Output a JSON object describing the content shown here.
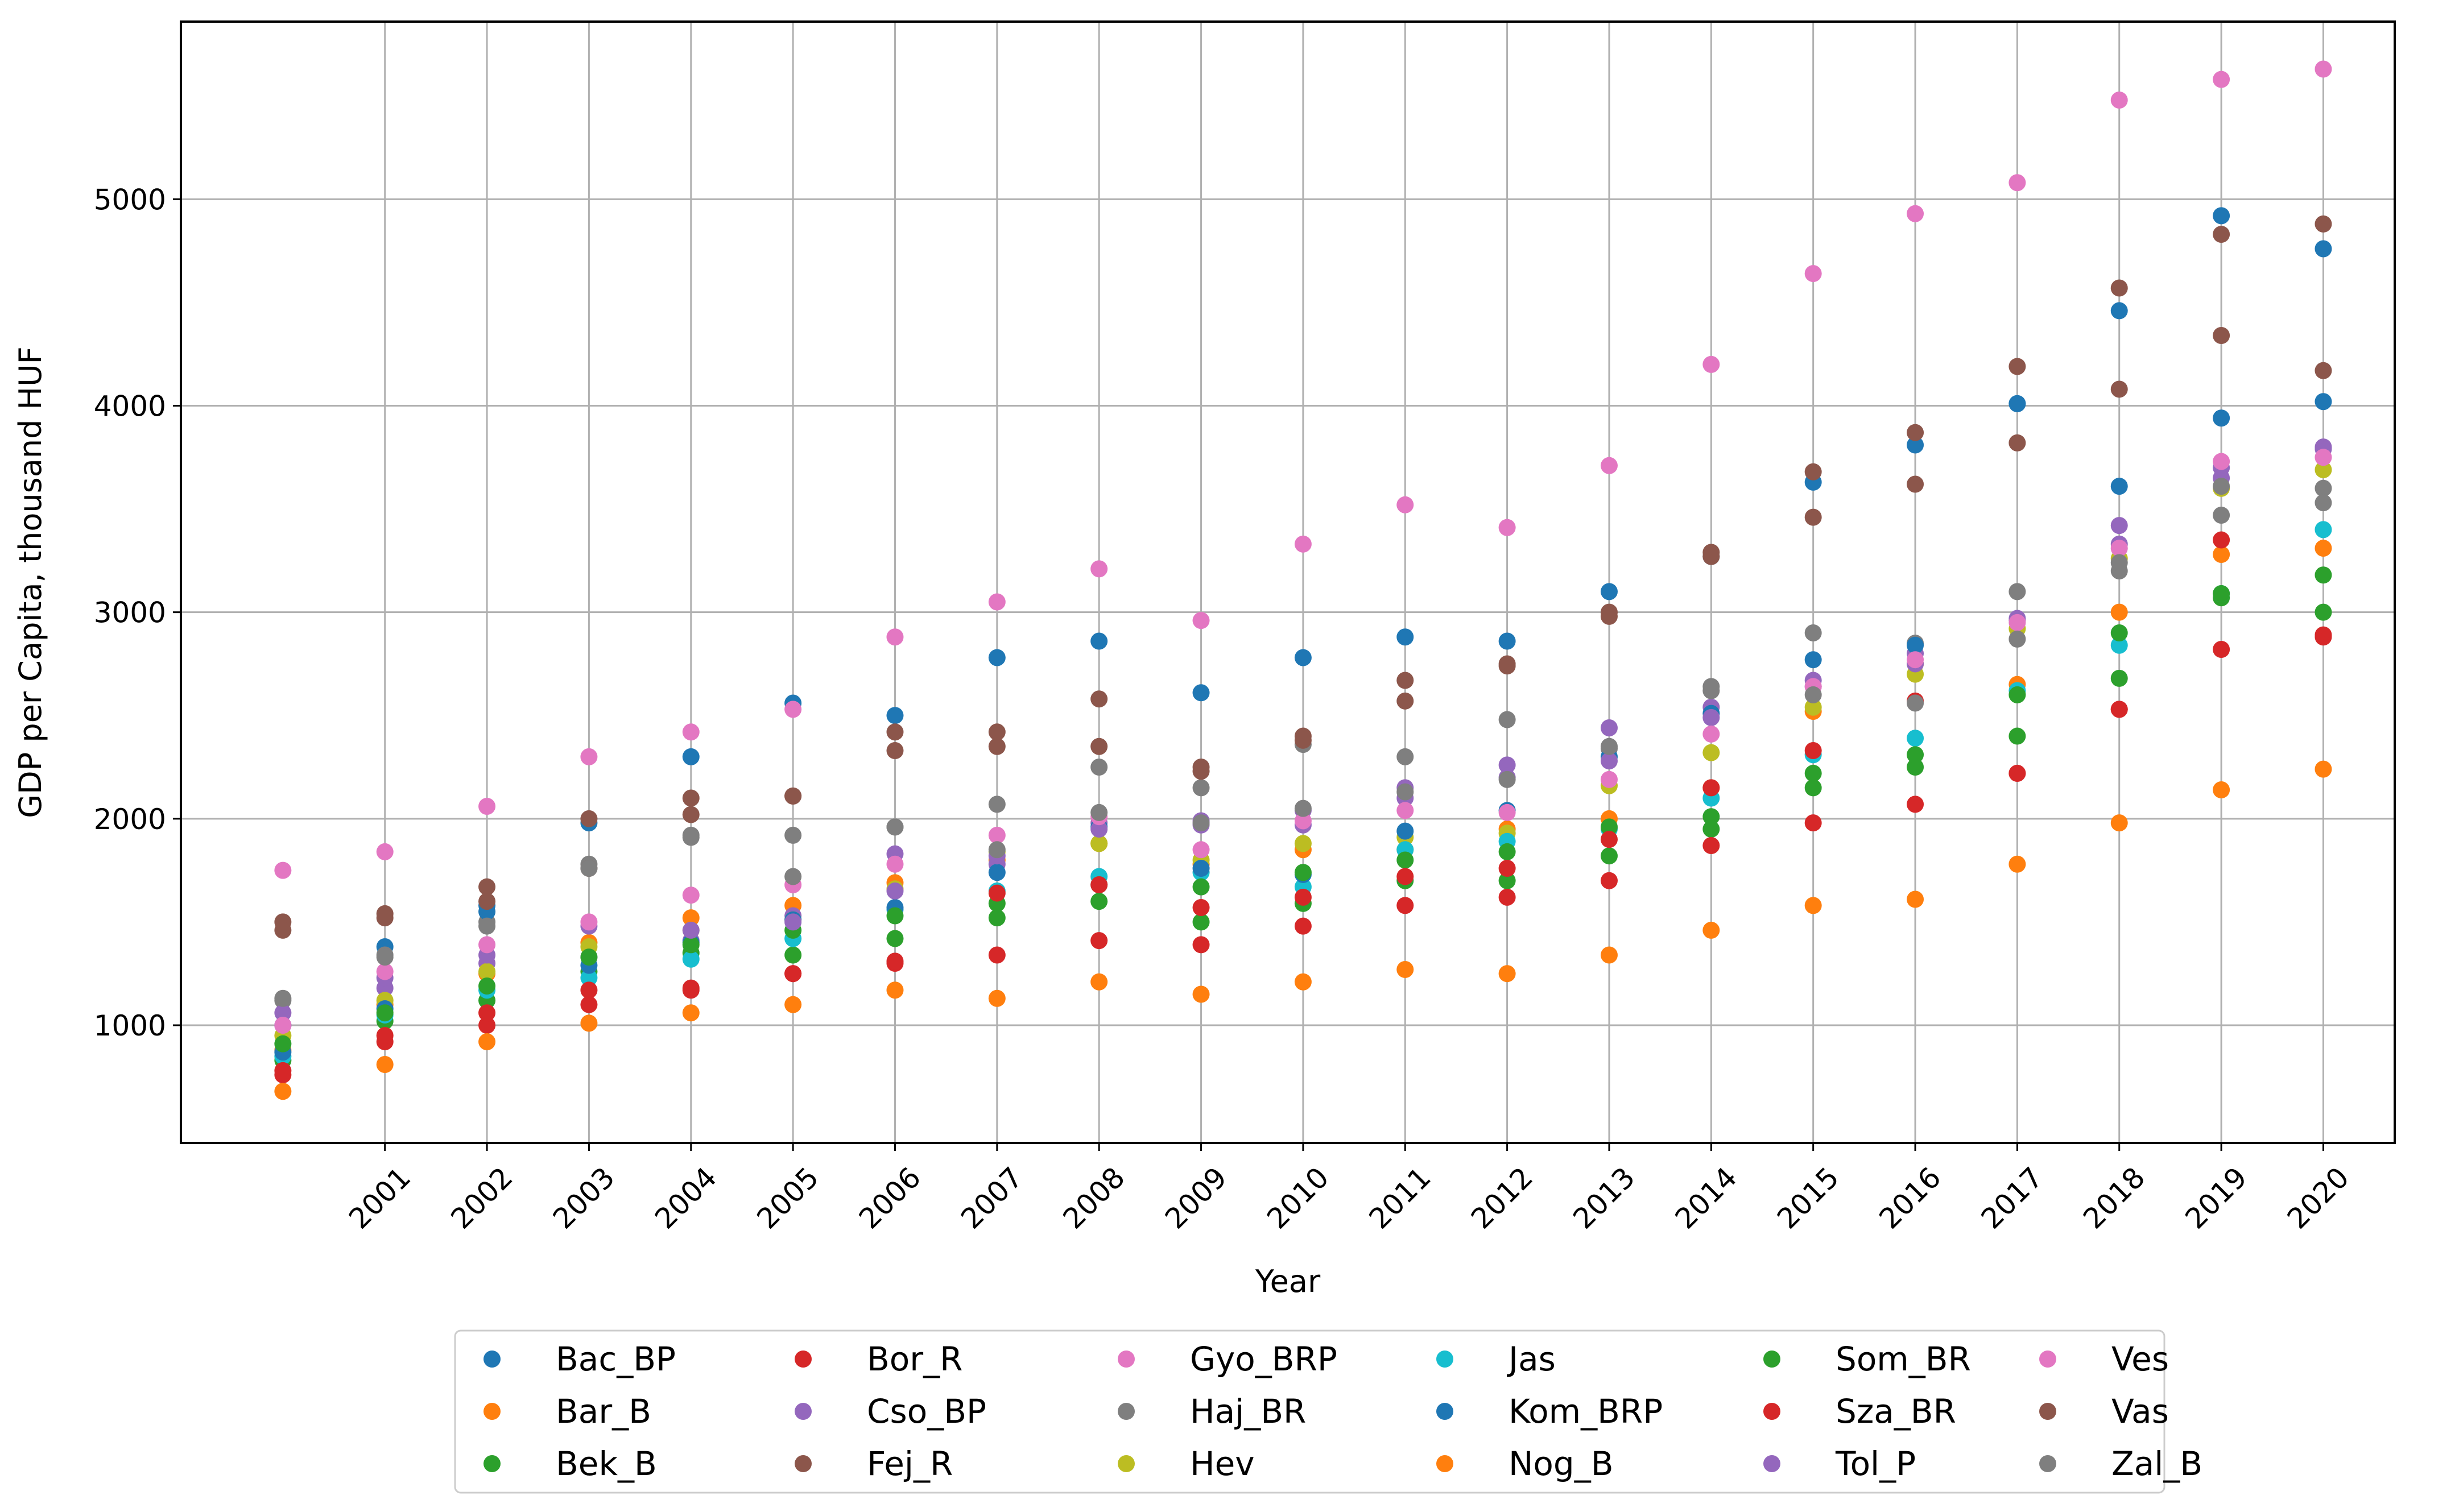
{
  "chart_data": {
    "type": "scatter",
    "title": "",
    "xlabel": "Year",
    "ylabel": "GDP per Capita, thousand HUF",
    "x": [
      2000,
      2001,
      2002,
      2003,
      2004,
      2005,
      2006,
      2007,
      2008,
      2009,
      2010,
      2011,
      2012,
      2013,
      2014,
      2015,
      2016,
      2017,
      2018,
      2019,
      2020
    ],
    "xticks": [
      "2001",
      "2002",
      "2003",
      "2004",
      "2005",
      "2006",
      "2007",
      "2008",
      "2009",
      "2010",
      "2011",
      "2012",
      "2013",
      "2014",
      "2015",
      "2016",
      "2017",
      "2018",
      "2019",
      "2020"
    ],
    "yticks": [
      1000,
      2000,
      3000,
      4000,
      5000
    ],
    "xlim": [
      1999.0,
      2020.7
    ],
    "ylim": [
      430,
      5860
    ],
    "grid": true,
    "legend_position": "bottom-center",
    "series": [
      {
        "name": "Bac_BP",
        "color": "#1f77b4",
        "values": [
          1000,
          1380,
          1580,
          1980,
          2300,
          2560,
          2500,
          2780,
          2860,
          2610,
          2780,
          2880,
          2860,
          3100,
          3270,
          3630,
          3810,
          4010,
          4460,
          4920,
          4760
        ]
      },
      {
        "name": "Bar_B",
        "color": "#ff7f0e",
        "values": [
          880,
          1100,
          1250,
          1400,
          1520,
          1580,
          1690,
          1800,
          1880,
          1780,
          1850,
          1850,
          1950,
          2000,
          2150,
          2520,
          2750,
          2650,
          3000,
          3280,
          3310
        ]
      },
      {
        "name": "Bek_B",
        "color": "#2ca02c",
        "values": [
          830,
          1020,
          1120,
          1260,
          1350,
          1340,
          1420,
          1520,
          1600,
          1500,
          1590,
          1700,
          1700,
          1820,
          1950,
          2150,
          2250,
          2400,
          2680,
          3070,
          3000
        ]
      },
      {
        "name": "Bor_R",
        "color": "#d62728",
        "values": [
          760,
          920,
          1000,
          1100,
          1180,
          1250,
          1300,
          1340,
          1410,
          1390,
          1480,
          1580,
          1620,
          1700,
          1870,
          1980,
          2070,
          2220,
          2530,
          2820,
          2880
        ]
      },
      {
        "name": "Cso_BP",
        "color": "#9467bd",
        "values": [
          1000,
          1180,
          1300,
          1330,
          1410,
          1530,
          1830,
          1780,
          1980,
          1990,
          2040,
          2150,
          2260,
          2440,
          2540,
          2670,
          2800,
          2960,
          3420,
          3700,
          3800
        ]
      },
      {
        "name": "Fej_R",
        "color": "#8c564b",
        "values": [
          1500,
          1540,
          1670,
          2000,
          2100,
          2110,
          2420,
          2420,
          2580,
          2250,
          2400,
          2670,
          2750,
          3000,
          3290,
          3680,
          3870,
          4190,
          4570,
          4830,
          4880
        ]
      },
      {
        "name": "Gyo_BRP",
        "color": "#e377c2",
        "values": [
          1750,
          1840,
          2060,
          2300,
          2420,
          2530,
          2880,
          3050,
          3210,
          2960,
          3330,
          3520,
          3410,
          3710,
          4200,
          4640,
          4930,
          5080,
          5480,
          5580,
          5630
        ]
      },
      {
        "name": "Haj_BR",
        "color": "#7f7f7f",
        "values": [
          1120,
          1340,
          1500,
          1780,
          1910,
          1920,
          1960,
          2070,
          2250,
          2150,
          2360,
          2300,
          2480,
          2340,
          2640,
          2900,
          2850,
          3100,
          3200,
          3470,
          3600
        ]
      },
      {
        "name": "Hev",
        "color": "#bcbd22",
        "values": [
          950,
          1120,
          1260,
          1380,
          1460,
          1510,
          1660,
          1840,
          1880,
          1800,
          1880,
          1910,
          1930,
          2160,
          2320,
          2540,
          2700,
          2920,
          3260,
          3600,
          3690
        ]
      },
      {
        "name": "Jas",
        "color": "#17becf",
        "values": [
          850,
          1050,
          1170,
          1230,
          1320,
          1420,
          1560,
          1650,
          1720,
          1740,
          1670,
          1850,
          1890,
          1950,
          2100,
          2310,
          2390,
          2620,
          2840,
          3090,
          3400
        ]
      },
      {
        "name": "Kom_BRP",
        "color": "#1f77b4",
        "values": [
          870,
          1080,
          1550,
          1290,
          1400,
          1510,
          1570,
          1740,
          1960,
          1760,
          1730,
          1940,
          2040,
          2300,
          2510,
          2770,
          2840,
          4010,
          3610,
          3940,
          4020
        ]
      },
      {
        "name": "Nog_B",
        "color": "#ff7f0e",
        "values": [
          680,
          810,
          920,
          1010,
          1060,
          1100,
          1170,
          1130,
          1210,
          1150,
          1210,
          1270,
          1250,
          1340,
          1460,
          1580,
          1610,
          1780,
          1980,
          2140,
          2240
        ]
      },
      {
        "name": "Som_BR",
        "color": "#2ca02c",
        "values": [
          910,
          1060,
          1190,
          1330,
          1390,
          1460,
          1530,
          1590,
          1680,
          1670,
          1740,
          1800,
          1840,
          1960,
          2010,
          2220,
          2310,
          2600,
          2900,
          3090,
          3180
        ]
      },
      {
        "name": "Sza_BR",
        "color": "#d62728",
        "values": [
          780,
          950,
          1060,
          1170,
          1170,
          1250,
          1310,
          1640,
          1680,
          1570,
          1620,
          1720,
          1760,
          1900,
          2150,
          2330,
          2570,
          2220,
          2530,
          3350,
          2890
        ]
      },
      {
        "name": "Tol_P",
        "color": "#9467bd",
        "values": [
          1060,
          1230,
          1340,
          1480,
          1460,
          1500,
          1650,
          1820,
          1950,
          1970,
          1970,
          2100,
          2200,
          2280,
          2490,
          2640,
          2750,
          2970,
          3330,
          3650,
          3790
        ]
      },
      {
        "name": "Ves",
        "color": "#e377c2",
        "values": [
          1000,
          1260,
          1390,
          1500,
          1630,
          1680,
          1780,
          1920,
          2010,
          1850,
          1990,
          2040,
          2030,
          2190,
          2410,
          2640,
          2770,
          2950,
          3310,
          3730,
          3750
        ]
      },
      {
        "name": "Vas",
        "color": "#8c564b",
        "values": [
          1460,
          1520,
          1600,
          1760,
          2020,
          2110,
          2330,
          2350,
          2350,
          2230,
          2380,
          2570,
          2740,
          2980,
          3270,
          3460,
          3620,
          3820,
          4080,
          4340,
          4170
        ]
      },
      {
        "name": "Zal_B",
        "color": "#7f7f7f",
        "values": [
          1130,
          1330,
          1480,
          1760,
          1920,
          1720,
          1960,
          1850,
          2030,
          1980,
          2050,
          2130,
          2190,
          2350,
          2620,
          2600,
          2560,
          2870,
          3240,
          3610,
          3530
        ]
      }
    ]
  }
}
